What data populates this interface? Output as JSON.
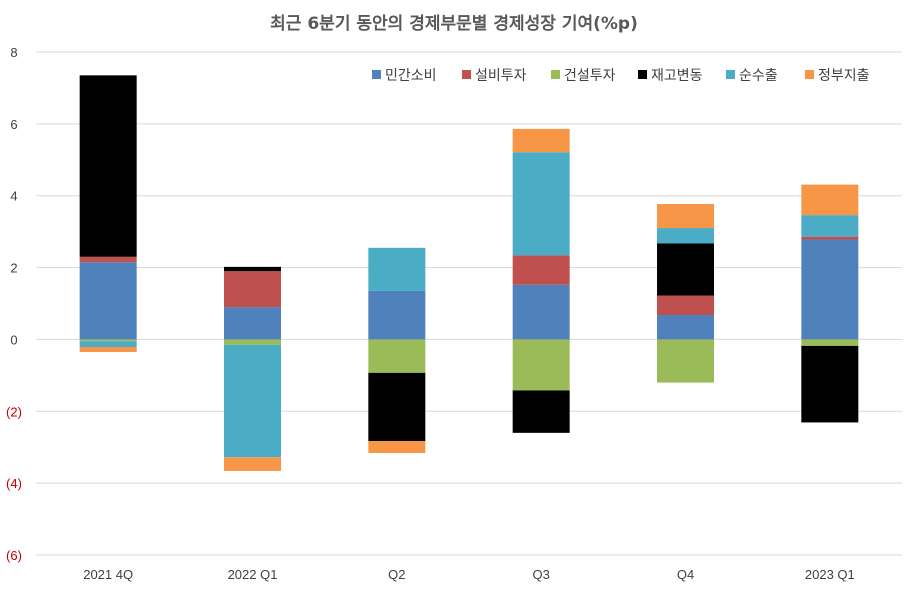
{
  "chart_data": {
    "type": "bar",
    "stacked": true,
    "title": "최근 6분기 동안의 경제부문별 경제성장 기여(%p)",
    "categories": [
      "2021 4Q",
      "2022 Q1",
      "Q2",
      "Q3",
      "Q4",
      "2023 Q1"
    ],
    "ylim": [
      -6,
      8
    ],
    "yticks": [
      {
        "value": 8,
        "label": "8"
      },
      {
        "value": 6,
        "label": "6"
      },
      {
        "value": 4,
        "label": "4"
      },
      {
        "value": 2,
        "label": "2"
      },
      {
        "value": 0,
        "label": "0"
      },
      {
        "value": -2,
        "label": "(2)"
      },
      {
        "value": -4,
        "label": "(4)"
      },
      {
        "value": -6,
        "label": "(6)"
      }
    ],
    "grid": true,
    "legend_position": "top-right",
    "negative_tick_color": "#c00000",
    "series": [
      {
        "name": "민간소비",
        "color": "#4f81bd",
        "values": [
          2.15,
          0.9,
          1.35,
          1.52,
          0.68,
          2.78
        ]
      },
      {
        "name": "설비투자",
        "color": "#c0504d",
        "values": [
          0.15,
          1.0,
          0.0,
          0.82,
          0.54,
          0.08
        ]
      },
      {
        "name": "건설투자",
        "color": "#9bbb59",
        "values": [
          -0.05,
          -0.15,
          -0.93,
          -1.42,
          -1.2,
          -0.18
        ]
      },
      {
        "name": "재고변동",
        "color": "#000000",
        "values": [
          5.05,
          0.12,
          -1.9,
          -1.18,
          1.45,
          -2.13
        ]
      },
      {
        "name": "순수출",
        "color": "#4bacc6",
        "values": [
          -0.16,
          -3.13,
          1.2,
          2.87,
          0.43,
          0.6
        ]
      },
      {
        "name": "정부지출",
        "color": "#f79646",
        "values": [
          -0.14,
          -0.38,
          -0.33,
          0.65,
          0.67,
          0.85
        ]
      }
    ]
  }
}
